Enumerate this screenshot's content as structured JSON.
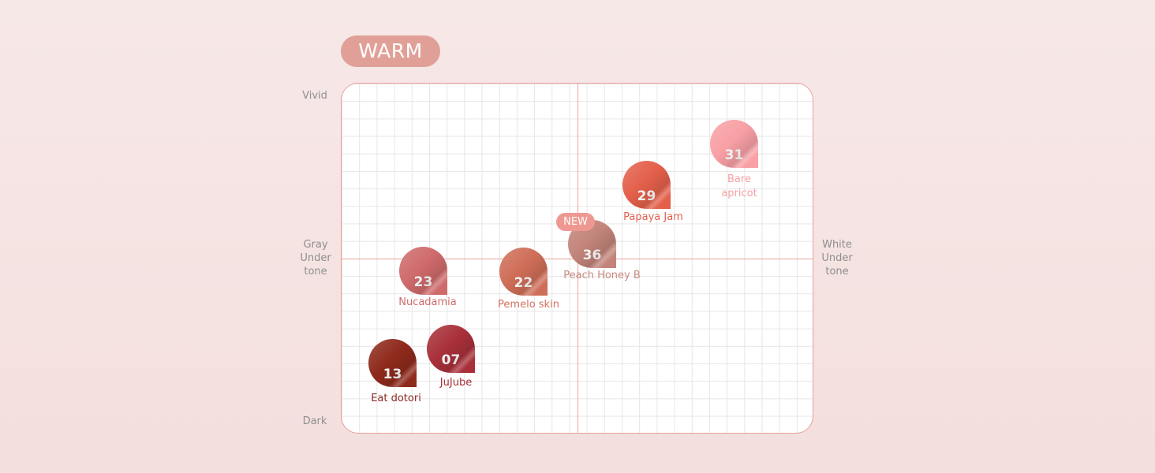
{
  "badge": "WARM",
  "axes": {
    "top": "Vivid",
    "bottom": "Dark",
    "left": "Gray\nUnder\ntone",
    "right": "White\nUnder\ntone"
  },
  "new_badge": "NEW",
  "colors": {
    "frame": "#e8a09a",
    "badge_bg": "#e0a098",
    "new_bg": "#ef9892"
  },
  "products": [
    {
      "number": "31",
      "name": "Bare\napricot",
      "color": "#f8a0a5",
      "label_color": "#f5a0a4"
    },
    {
      "number": "29",
      "name": "Papaya Jam",
      "color": "#e3604b",
      "label_color": "#e0604f"
    },
    {
      "number": "36",
      "name": "Peach Honey B",
      "color": "#c2847a",
      "label_color": "#c98a80",
      "new": true
    },
    {
      "number": "22",
      "name": "Pemelo skin",
      "color": "#cf6e58",
      "label_color": "#d4705f"
    },
    {
      "number": "23",
      "name": "Nucadamia",
      "color": "#cf6a6b",
      "label_color": "#d06a6c"
    },
    {
      "number": "13",
      "name": "Eat dotori",
      "color": "#8e2a1c",
      "label_color": "#8f2a24"
    },
    {
      "number": "07",
      "name": "JuJube",
      "color": "#a8303a",
      "label_color": "#a8303a"
    }
  ]
}
